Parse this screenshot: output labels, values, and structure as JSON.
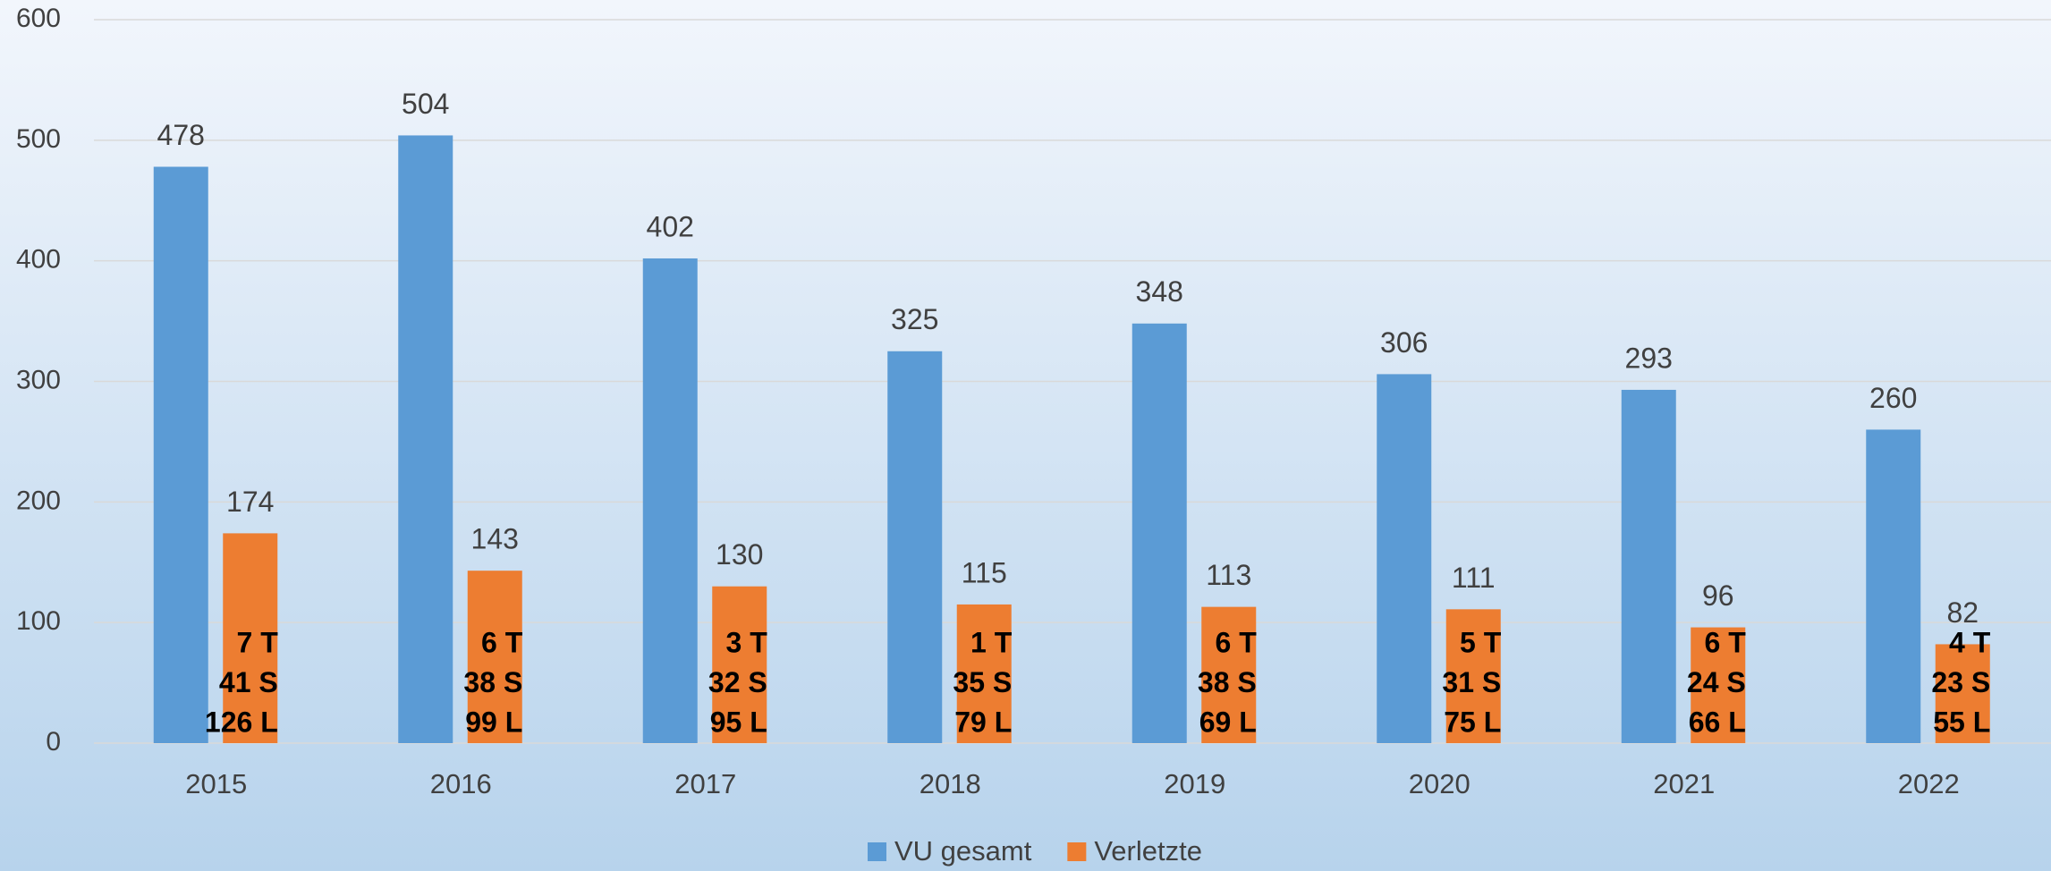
{
  "chart_data": {
    "type": "bar",
    "categories": [
      "2015",
      "2016",
      "2017",
      "2018",
      "2019",
      "2020",
      "2021",
      "2022"
    ],
    "series": [
      {
        "name": "VU gesamt",
        "color": "#5b9bd5",
        "values": [
          478,
          504,
          402,
          325,
          348,
          306,
          293,
          260
        ]
      },
      {
        "name": "Verletzte",
        "color": "#ed7d31",
        "values": [
          174,
          143,
          130,
          115,
          113,
          111,
          96,
          82
        ],
        "annotations": [
          [
            "7 T",
            "41 S",
            "126 L"
          ],
          [
            "6 T",
            "38 S",
            "99 L"
          ],
          [
            "3 T",
            "32 S",
            "95 L"
          ],
          [
            "1 T",
            "35 S",
            "79 L"
          ],
          [
            "6 T",
            "38 S",
            "69 L"
          ],
          [
            "5 T",
            "31 S",
            "75 L"
          ],
          [
            "6 T",
            "24 S",
            "66 L"
          ],
          [
            "4 T",
            "23 S",
            "55 L"
          ]
        ]
      }
    ],
    "ylim": [
      0,
      600
    ],
    "yticks": [
      0,
      100,
      200,
      300,
      400,
      500,
      600
    ],
    "grid": true,
    "legend": "bottom"
  }
}
